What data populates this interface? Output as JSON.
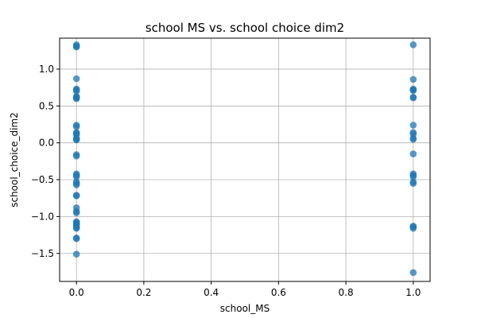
{
  "chart_data": {
    "type": "scatter",
    "title": "school MS vs. school choice dim2",
    "xlabel": "school_MS",
    "ylabel": "school_choice_dim2",
    "xlim": [
      -0.05,
      1.05
    ],
    "ylim": [
      -1.88,
      1.42
    ],
    "xticks": [
      0.0,
      0.2,
      0.4,
      0.6,
      0.8,
      1.0
    ],
    "xtick_labels": [
      "0.0",
      "0.2",
      "0.4",
      "0.6",
      "0.8",
      "1.0"
    ],
    "yticks": [
      -1.5,
      -1.0,
      -0.5,
      0.0,
      0.5,
      1.0
    ],
    "ytick_labels": [
      "−1.5",
      "−1.0",
      "−0.5",
      "0.0",
      "0.5",
      "1.0"
    ],
    "grid": true,
    "marker_color": "#1f77b4",
    "marker_alpha": 0.75,
    "series": [
      {
        "x": [
          0,
          0,
          0,
          0,
          0,
          0,
          0,
          0,
          0,
          0,
          0,
          0,
          0,
          0,
          0,
          0,
          0,
          0,
          0,
          0,
          0,
          0,
          0,
          0,
          0,
          0,
          0,
          0,
          0,
          0,
          0,
          0,
          0,
          0,
          0,
          0,
          0,
          0,
          0,
          0,
          0,
          0
        ],
        "y": [
          1.33,
          1.31,
          1.3,
          0.87,
          0.73,
          0.72,
          0.7,
          0.62,
          0.61,
          0.6,
          0.24,
          0.22,
          0.14,
          0.13,
          0.11,
          0.06,
          0.05,
          0.04,
          -0.16,
          -0.18,
          -0.42,
          -0.44,
          -0.46,
          -0.53,
          -0.55,
          -0.57,
          -0.71,
          -0.72,
          -0.88,
          -0.93,
          -0.95,
          -1.07,
          -1.09,
          -1.11,
          -1.13,
          -1.15,
          -1.16,
          -1.29,
          -1.3,
          -1.51,
          0.63,
          -1.08
        ]
      },
      {
        "x": [
          1,
          1,
          1,
          1,
          1,
          1,
          1,
          1,
          1,
          1,
          1,
          1,
          1,
          1,
          1,
          1,
          1,
          1,
          1,
          1,
          1,
          1
        ],
        "y": [
          1.33,
          0.86,
          0.73,
          0.72,
          0.62,
          0.61,
          0.24,
          0.14,
          0.12,
          0.06,
          0.05,
          -0.15,
          -0.42,
          -0.44,
          -0.46,
          -0.53,
          -0.55,
          -1.13,
          -1.14,
          -1.16,
          -1.76,
          0.71
        ]
      }
    ]
  }
}
